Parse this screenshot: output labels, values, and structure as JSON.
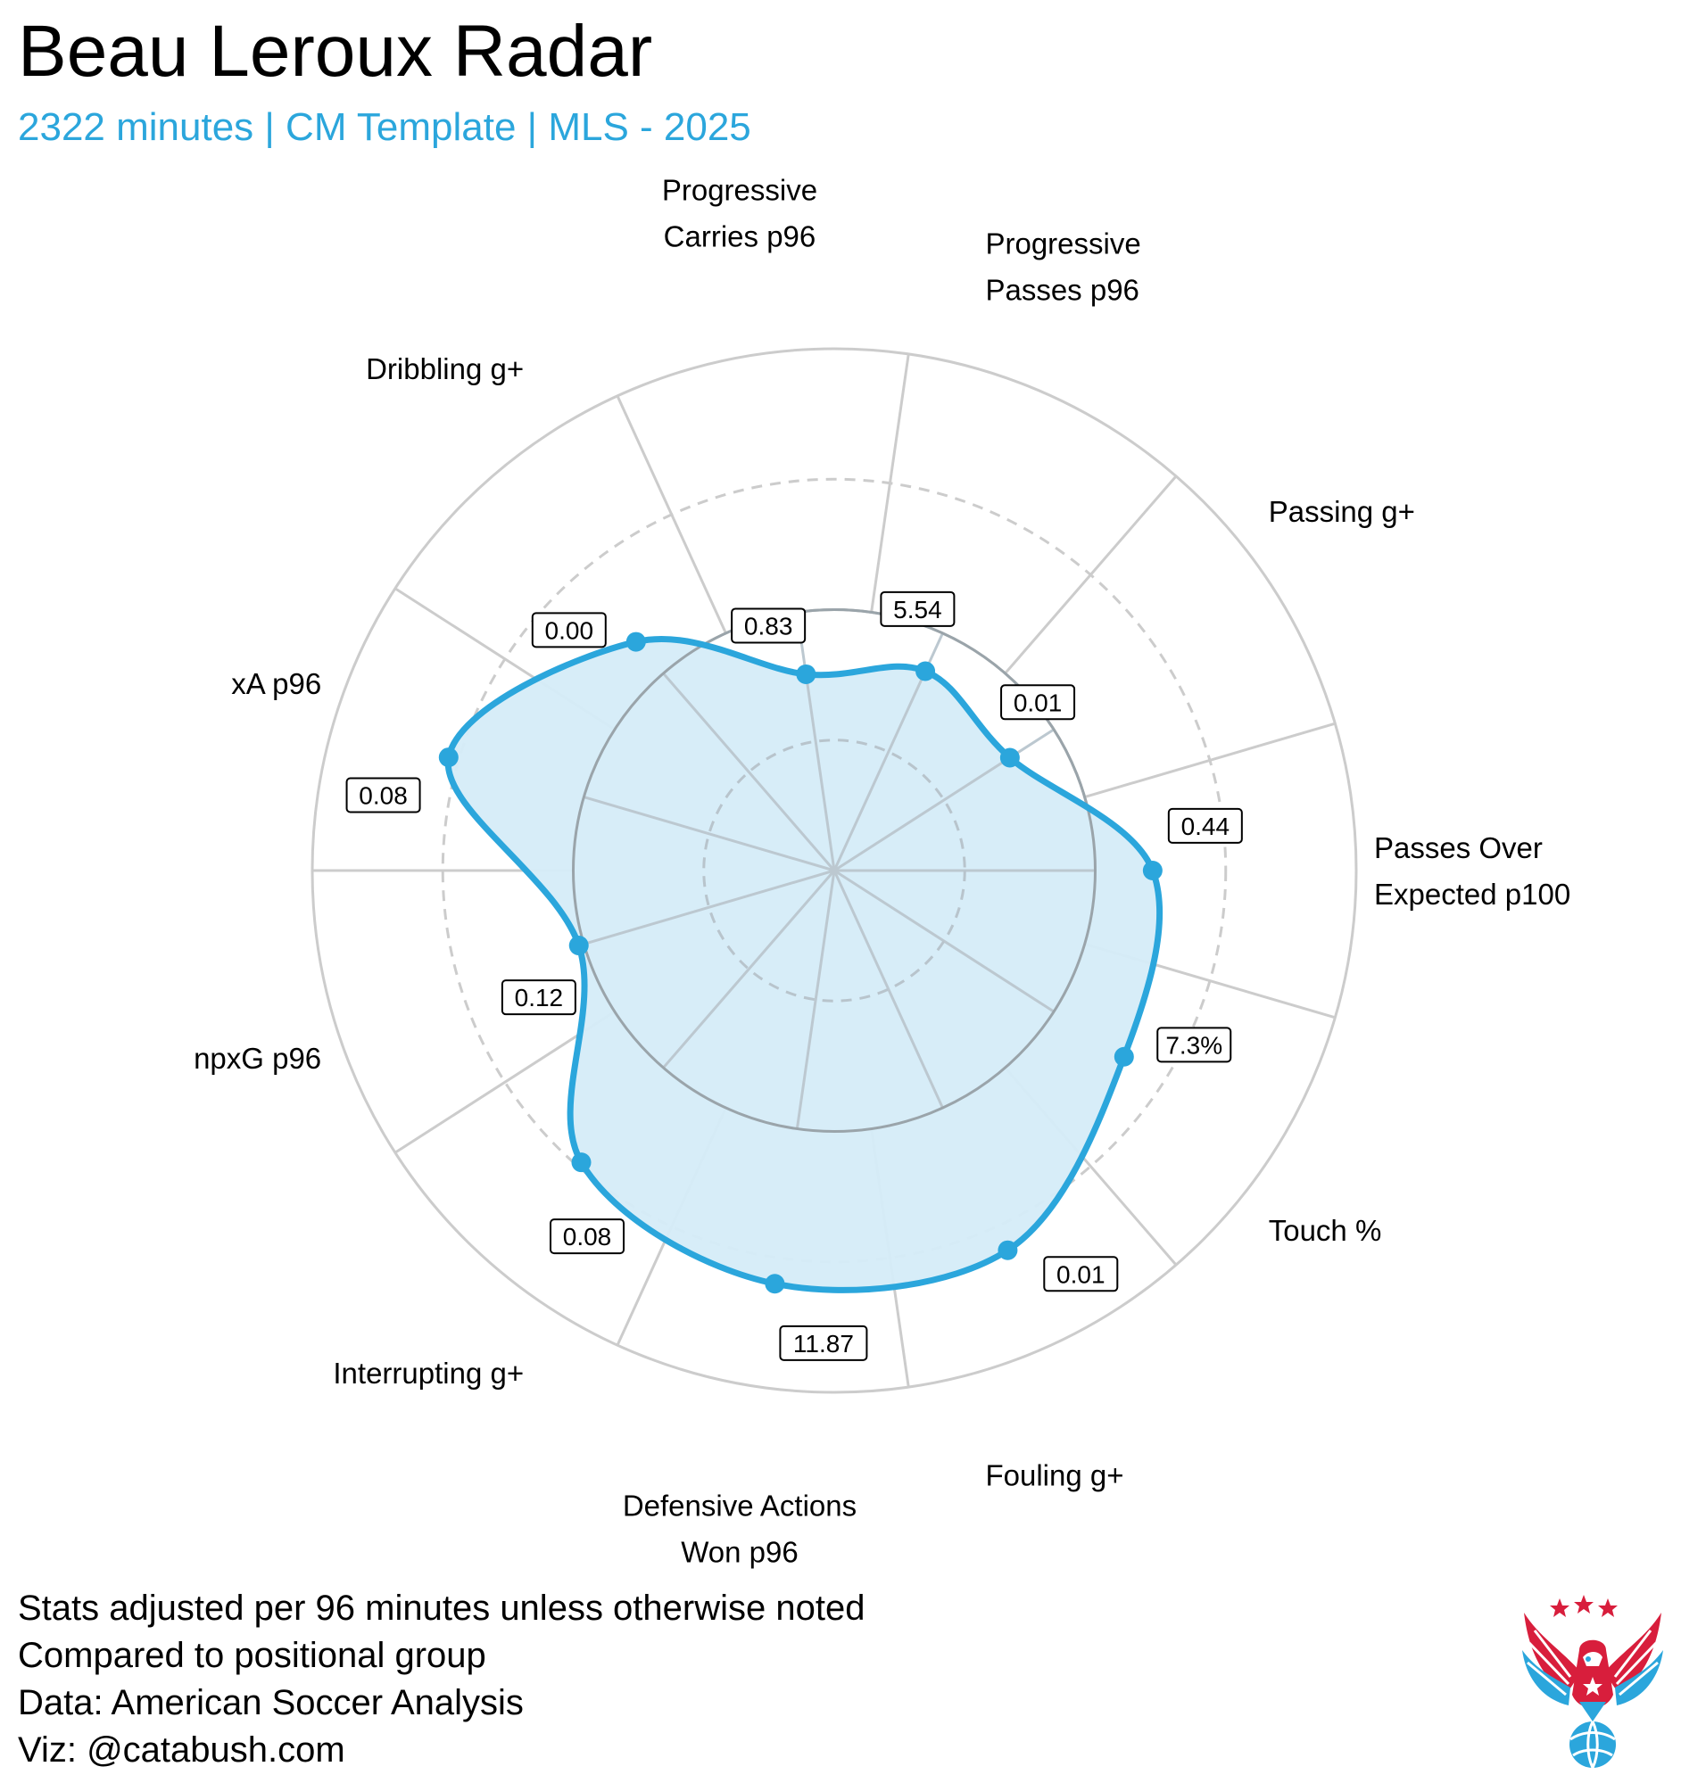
{
  "header": {
    "title": "Beau Leroux Radar",
    "subtitle": "2322 minutes | CM Template | MLS - 2025"
  },
  "colors": {
    "accent": "#2ba6dc",
    "fill": "#d5ecf8",
    "grid": "#cccccc",
    "grid_inner": "#aaaaaa"
  },
  "chart_data": {
    "type": "radar",
    "title": "Beau Leroux Radar",
    "scale": "percentile",
    "rlim": [
      0,
      100
    ],
    "rings": [
      {
        "value": 25,
        "style": "dashed"
      },
      {
        "value": 50,
        "style": "solid"
      },
      {
        "value": 75,
        "style": "dashed"
      },
      {
        "value": 100,
        "style": "solid"
      }
    ],
    "axes": [
      {
        "label": "Passes Over\nExpected p100",
        "value_label": "0.44",
        "percentile": 61
      },
      {
        "label": "Passing g+",
        "value_label": "0.01",
        "percentile": 40
      },
      {
        "label": "Progressive\nPasses p96",
        "value_label": "5.54",
        "percentile": 42
      },
      {
        "label": "Progressive\nCarries p96",
        "value_label": "0.83",
        "percentile": 38
      },
      {
        "label": "Dribbling g+",
        "value_label": "0.00",
        "percentile": 58
      },
      {
        "label": "xA p96",
        "value_label": "0.08",
        "percentile": 77
      },
      {
        "label": "npxG p96",
        "value_label": "0.12",
        "percentile": 51
      },
      {
        "label": "Interrupting g+",
        "value_label": "0.08",
        "percentile": 74
      },
      {
        "label": "Defensive Actions\nWon p96",
        "value_label": "11.87",
        "percentile": 80
      },
      {
        "label": "Fouling g+",
        "value_label": "0.01",
        "percentile": 80
      },
      {
        "label": "Touch %",
        "value_label": "7.3%",
        "percentile": 66
      }
    ]
  },
  "footer": {
    "line1": "Stats adjusted per 96 minutes unless otherwise noted",
    "line2": "Compared to positional group",
    "line3": "Data: American Soccer Analysis",
    "line4": "Viz: @catabush.com"
  },
  "logo": {
    "icon": "eagle-soccer-ball-icon"
  }
}
